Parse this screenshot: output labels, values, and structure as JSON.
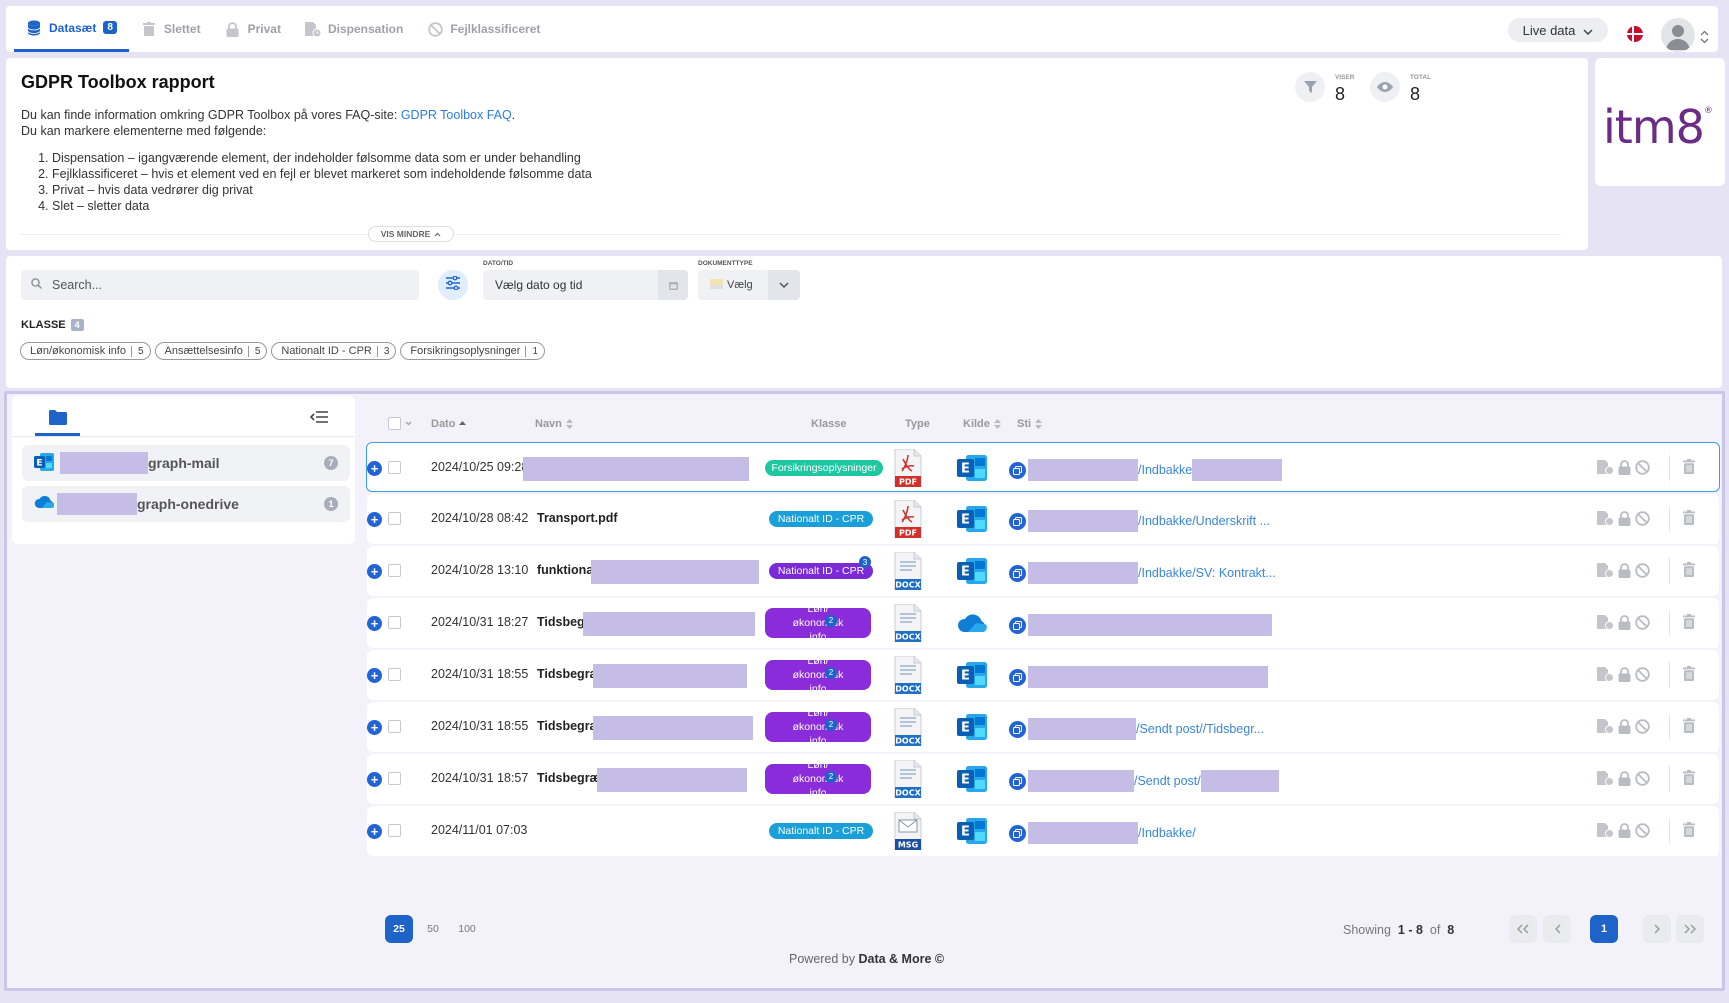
{
  "nav": {
    "tabs": [
      {
        "label": "Datasæt",
        "badge": "8",
        "icon": "database-icon"
      },
      {
        "label": "Slettet",
        "icon": "trash-icon"
      },
      {
        "label": "Privat",
        "icon": "lock-icon"
      },
      {
        "label": "Dispensation",
        "icon": "file-clock-icon"
      },
      {
        "label": "Fejlklassificeret",
        "icon": "ban-icon"
      }
    ],
    "live_data": "Live data"
  },
  "report": {
    "title": "GDPR Toolbox rapport",
    "intro": "Du kan finde information omkring GDPR Toolbox på vores FAQ-site: ",
    "faq_link": "GDPR Toolbox FAQ",
    "intro_end": ".",
    "mark_text": "Du kan markere elementerne med følgende:",
    "list": [
      "Dispensation – igangværende element, der indeholder følsomme data som er under behandling",
      "Fejlklassificeret – hvis et element ved en fejl er blevet markeret som indeholdende følsomme data",
      "Privat – hvis data vedrører dig privat",
      "Slet – sletter data"
    ],
    "vis_mindre": "VIS MINDRE",
    "viser_label": "VISER",
    "viser_value": "8",
    "total_label": "TOTAL",
    "total_value": "8"
  },
  "logo": {
    "text": "itm8",
    "mark": "®"
  },
  "filters": {
    "search_placeholder": "Search...",
    "date_label": "DATO/TID",
    "date_placeholder": "Vælg dato og tid",
    "doctype_label": "DOKUMENTTYPE",
    "doctype_value": "Vælg",
    "klasse_label": "KLASSE",
    "klasse_count": "4",
    "chips": [
      {
        "label": "Løn/økonomisk info",
        "count": "5"
      },
      {
        "label": "Ansættelsesinfo",
        "count": "5"
      },
      {
        "label": "Nationalt ID - CPR",
        "count": "3"
      },
      {
        "label": "Forsikringsoplysninger",
        "count": "1"
      }
    ]
  },
  "sources": [
    {
      "label": "graph-mail",
      "count": "7",
      "icon": "exchange-icon"
    },
    {
      "label": "graph-onedrive",
      "count": "1",
      "icon": "onedrive-icon"
    }
  ],
  "table": {
    "headers": {
      "dato": "Dato",
      "navn": "Navn",
      "klasse": "Klasse",
      "type": "Type",
      "kilde": "Kilde",
      "sti": "Sti"
    },
    "rows": [
      {
        "date": "2024/10/25 09:28",
        "name": "",
        "klasse": "Forsikringsoplysninger",
        "ktype": "forsik",
        "type": "PDF",
        "kilde": "exchange",
        "sti": "/Indbakke"
      },
      {
        "date": "2024/10/28 08:42",
        "name": "Transport.pdf",
        "klasse": "Nationalt ID - CPR",
        "ktype": "cpr",
        "type": "PDF",
        "kilde": "exchange",
        "sti": "/Indbakke/Underskrift ..."
      },
      {
        "date": "2024/10/28 13:10",
        "name": "funktionær",
        "klasse": "Nationalt ID - CPR",
        "ktype": "cpr2",
        "sup": "3",
        "type": "DOCX",
        "kilde": "exchange",
        "sti": "/Indbakke/SV: Kontrakt..."
      },
      {
        "date": "2024/10/31 18:27",
        "name": "Tidsbegra",
        "klasse": "Løn/økonomisk info",
        "ktype": "lon",
        "sup": "2",
        "type": "DOCX",
        "kilde": "onedrive",
        "sti": ""
      },
      {
        "date": "2024/10/31 18:55",
        "name": "Tidsbegræn",
        "klasse": "Løn/økonomisk info",
        "ktype": "lon",
        "sup": "2",
        "type": "DOCX",
        "kilde": "exchange",
        "sti": ""
      },
      {
        "date": "2024/10/31 18:55",
        "name": "Tidsbegræn",
        "klasse": "Løn/økonomisk info",
        "ktype": "lon",
        "sup": "2",
        "type": "DOCX",
        "kilde": "exchange",
        "sti": "/Sendt post//Tidsbegr..."
      },
      {
        "date": "2024/10/31 18:57",
        "name": "Tidsbegræns",
        "klasse": "Løn/økonomisk info",
        "ktype": "lon",
        "sup": "2",
        "type": "DOCX",
        "kilde": "exchange",
        "sti": "/Sendt post/"
      },
      {
        "date": "2024/11/01 07:03",
        "name": "",
        "klasse": "Nationalt ID - CPR",
        "ktype": "cpr",
        "type": "MSG",
        "kilde": "exchange",
        "sti": "/Indbakke/"
      }
    ]
  },
  "pager": {
    "sizes": [
      "25",
      "50",
      "100"
    ],
    "showing_label": "Showing",
    "range": "1 - 8",
    "of_label": "of",
    "total": "8",
    "current": "1"
  },
  "footer": {
    "prefix": "Powered by ",
    "brand": "Data & More ©"
  },
  "colors": {
    "accent": "#1d63c8",
    "redaction": "#c5bde6",
    "lon": "#8a2cd9",
    "cpr": "#1a9fd8",
    "forsik": "#1fc7a0"
  }
}
